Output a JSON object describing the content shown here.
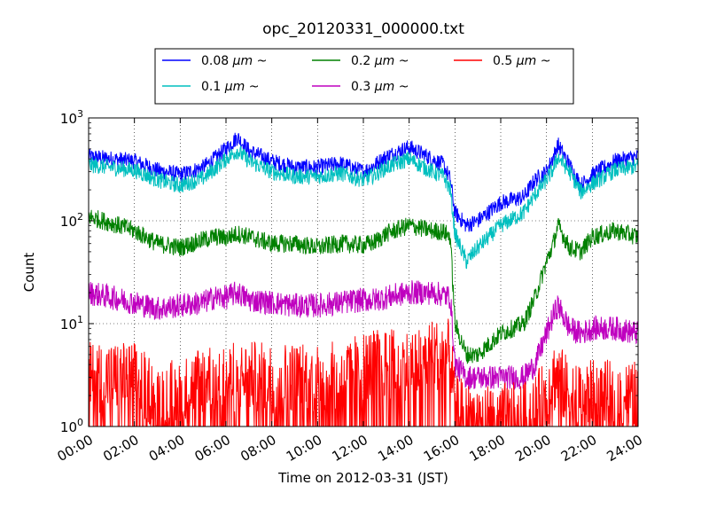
{
  "chart_data": {
    "type": "line",
    "title": "opc_20120331_000000.txt",
    "xlabel": "Time on 2012-03-31 (JST)",
    "ylabel": "Count",
    "y_scale": "log",
    "ylim": [
      1,
      1000
    ],
    "xlim_hours": [
      0,
      24
    ],
    "x_tick_labels": [
      "00:00",
      "02:00",
      "04:00",
      "06:00",
      "08:00",
      "10:00",
      "12:00",
      "14:00",
      "16:00",
      "18:00",
      "20:00",
      "22:00",
      "24:00"
    ],
    "y_tick_labels": [
      {
        "base": "10",
        "exp": "0"
      },
      {
        "base": "10",
        "exp": "1"
      },
      {
        "base": "10",
        "exp": "2"
      },
      {
        "base": "10",
        "exp": "3"
      }
    ],
    "grid": true,
    "legend_position": "top-center",
    "x_hours": [
      0,
      1,
      2,
      3,
      4,
      5,
      5.5,
      6,
      6.5,
      7,
      8,
      9,
      10,
      11,
      12,
      12.5,
      13,
      14,
      15,
      15.5,
      15.8,
      16,
      16.5,
      17,
      18,
      19,
      19.5,
      20,
      20.3,
      20.5,
      21,
      21.5,
      22,
      23,
      24
    ],
    "series": [
      {
        "name_main": "0.08",
        "name_unit": "μm",
        "name_suffix": "~",
        "color": "#0000ff",
        "values": [
          420,
          400,
          380,
          310,
          280,
          330,
          400,
          500,
          650,
          480,
          380,
          330,
          330,
          360,
          300,
          350,
          420,
          520,
          400,
          350,
          250,
          120,
          90,
          100,
          150,
          170,
          250,
          300,
          420,
          550,
          350,
          220,
          280,
          380,
          420
        ]
      },
      {
        "name_main": "0.1",
        "name_unit": "μm",
        "name_suffix": "~",
        "color": "#00bfbf",
        "values": [
          350,
          330,
          310,
          250,
          220,
          260,
          320,
          400,
          480,
          380,
          300,
          270,
          270,
          290,
          250,
          280,
          330,
          400,
          300,
          270,
          200,
          75,
          40,
          55,
          90,
          120,
          180,
          250,
          320,
          420,
          300,
          190,
          230,
          310,
          340
        ]
      },
      {
        "name_main": "0.2",
        "name_unit": "μm",
        "name_suffix": "~",
        "color": "#008000",
        "values": [
          110,
          95,
          80,
          60,
          55,
          65,
          70,
          68,
          75,
          70,
          60,
          60,
          55,
          60,
          58,
          62,
          75,
          90,
          80,
          78,
          70,
          10,
          5,
          5,
          8,
          10,
          18,
          40,
          60,
          90,
          55,
          50,
          70,
          80,
          70
        ]
      },
      {
        "name_main": "0.3",
        "name_unit": "μm",
        "name_suffix": "~",
        "color": "#bf00bf",
        "values": [
          20,
          18,
          16,
          14,
          15,
          16,
          18,
          18,
          20,
          17,
          16,
          15,
          15,
          16,
          17,
          17,
          18,
          20,
          20,
          19,
          18,
          4,
          3,
          3,
          3,
          3,
          4,
          8,
          12,
          15,
          9,
          8,
          9,
          9,
          8
        ]
      },
      {
        "name_main": "0.5",
        "name_unit": "μm",
        "name_suffix": "~",
        "color": "#ff0000",
        "values": [
          3,
          3,
          3,
          2,
          2,
          3,
          3,
          3,
          3,
          3,
          3,
          3,
          3,
          3,
          4,
          4,
          4,
          4,
          5,
          5,
          5,
          1.5,
          1.2,
          1.2,
          1.2,
          1.2,
          1.5,
          2,
          3,
          3,
          2,
          2,
          2,
          2,
          2
        ]
      }
    ]
  }
}
